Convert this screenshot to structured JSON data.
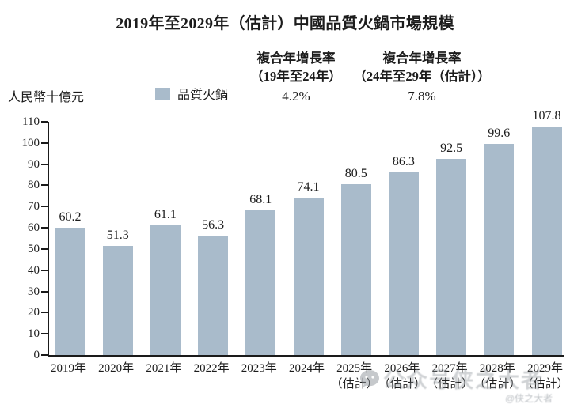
{
  "title": "2019年至2029年（估計）中國品質火鍋市場規模",
  "header": {
    "unit_label": "人民幣十億元",
    "legend": {
      "label": "品質火鍋",
      "color": "#a9bbcb"
    },
    "cagr": [
      {
        "line1": "複合年增長率",
        "line2": "（19年至24年）",
        "value": "4.2%"
      },
      {
        "line1": "複合年增長率",
        "line2": "（24年至29年（估計））",
        "value": "7.8%"
      }
    ]
  },
  "chart_data": {
    "type": "bar",
    "title": "2019年至2029年（估計）中國品質火鍋市場規模",
    "xlabel": "",
    "ylabel": "人民幣十億元",
    "legend_entries": [
      "品質火鍋"
    ],
    "legend_position": "top",
    "grid": false,
    "categories": [
      "2019年",
      "2020年",
      "2021年",
      "2022年",
      "2023年",
      "2024年",
      "2025年（估計）",
      "2026年（估計）",
      "2027年（估計）",
      "2028年（估計）",
      "2029年（估計）"
    ],
    "values": [
      60.2,
      51.3,
      61.1,
      56.3,
      68.1,
      74.1,
      80.5,
      86.3,
      92.5,
      99.6,
      107.8
    ],
    "ylim": [
      0,
      110
    ],
    "yticks": [
      0,
      10,
      20,
      30,
      40,
      50,
      60,
      70,
      80,
      90,
      100,
      110
    ],
    "bar_color": "#a9bbcb",
    "estimate_suffix": "（估計）",
    "cagr_annotations": [
      {
        "label": "複合年增長率（19年至24年）",
        "value": "4.2%"
      },
      {
        "label": "複合年增長率（24年至29年（估計））",
        "value": "7.8%"
      }
    ]
  },
  "watermark": {
    "prefix": "公众号",
    "name": "侠之大者",
    "handle": "@侠之大者"
  }
}
